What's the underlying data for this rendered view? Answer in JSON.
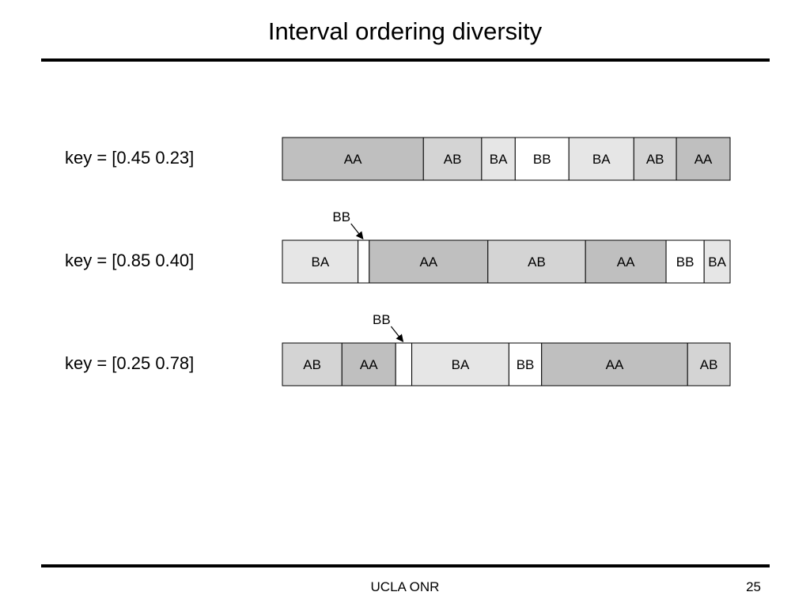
{
  "slide": {
    "title": "Interval ordering diversity",
    "footer": "UCLA ONR",
    "page_number": "25"
  },
  "colors": {
    "AA": "#bfbfbf",
    "AB": "#d4d4d4",
    "BA": "#e6e6e6",
    "BB": "#ffffff",
    "stroke": "#000000"
  },
  "rows": [
    {
      "key_label": "key = [0.45 0.23]",
      "segments": [
        {
          "label": "AA",
          "length": 0.315
        },
        {
          "label": "AB",
          "length": 0.13
        },
        {
          "label": "BA",
          "length": 0.075
        },
        {
          "label": "BB",
          "length": 0.12
        },
        {
          "label": "BA",
          "length": 0.145
        },
        {
          "label": "AB",
          "length": 0.095
        },
        {
          "label": "AA",
          "length": 0.12
        }
      ],
      "callout": null
    },
    {
      "key_label": "key = [0.85 0.40]",
      "segments": [
        {
          "label": "BA",
          "length": 0.169
        },
        {
          "label": "",
          "type": "BB",
          "length": 0.025
        },
        {
          "label": "AA",
          "length": 0.265
        },
        {
          "label": "AB",
          "length": 0.218
        },
        {
          "label": "AA",
          "length": 0.18
        },
        {
          "label": "BB",
          "length": 0.085
        },
        {
          "label": "BA",
          "length": 0.058
        }
      ],
      "callout": {
        "label": "BB",
        "segment_index": 1
      }
    },
    {
      "key_label": "key = [0.25 0.78]",
      "segments": [
        {
          "label": "AB",
          "length": 0.133
        },
        {
          "label": "AA",
          "length": 0.12
        },
        {
          "label": "",
          "type": "BB",
          "length": 0.036
        },
        {
          "label": "BA",
          "length": 0.217
        },
        {
          "label": "BB",
          "length": 0.073
        },
        {
          "label": "AA",
          "length": 0.326
        },
        {
          "label": "AB",
          "length": 0.095
        }
      ],
      "callout": {
        "label": "BB",
        "segment_index": 2
      }
    }
  ]
}
